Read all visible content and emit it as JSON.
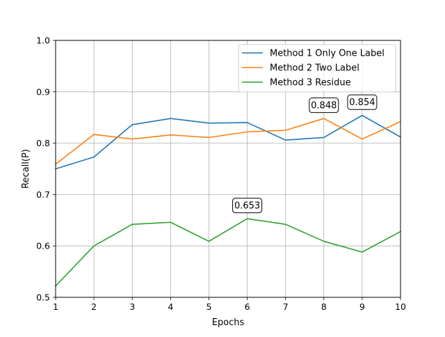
{
  "chart_data": {
    "type": "line",
    "title": "",
    "xlabel": "Epochs",
    "ylabel": "Recall(P)",
    "xlim": [
      1,
      10
    ],
    "ylim": [
      0.5,
      1.0
    ],
    "xticks": [
      "1",
      "2",
      "3",
      "4",
      "5",
      "6",
      "7",
      "8",
      "9",
      "10"
    ],
    "yticks": [
      "0.5",
      "0.6",
      "0.7",
      "0.8",
      "0.9",
      "1.0"
    ],
    "grid": true,
    "legend_position": "top-right",
    "x": [
      1,
      2,
      3,
      4,
      5,
      6,
      7,
      8,
      9,
      10
    ],
    "series": [
      {
        "name": "Method 1 Only One Label",
        "color": "#1f77b4",
        "values": [
          0.75,
          0.773,
          0.836,
          0.848,
          0.839,
          0.84,
          0.806,
          0.811,
          0.854,
          0.812
        ]
      },
      {
        "name": "Method 2 Two Label",
        "color": "#ff7f0e",
        "values": [
          0.759,
          0.817,
          0.808,
          0.816,
          0.811,
          0.822,
          0.825,
          0.848,
          0.808,
          0.842
        ]
      },
      {
        "name": "Method 3 Residue",
        "color": "#2ca02c",
        "values": [
          0.522,
          0.6,
          0.642,
          0.646,
          0.609,
          0.653,
          0.642,
          0.609,
          0.588,
          0.628
        ]
      }
    ],
    "annotations": [
      {
        "text": "0.848",
        "x": 8,
        "y": 0.848
      },
      {
        "text": "0.854",
        "x": 9,
        "y": 0.854
      },
      {
        "text": "0.653",
        "x": 6,
        "y": 0.653
      }
    ]
  }
}
